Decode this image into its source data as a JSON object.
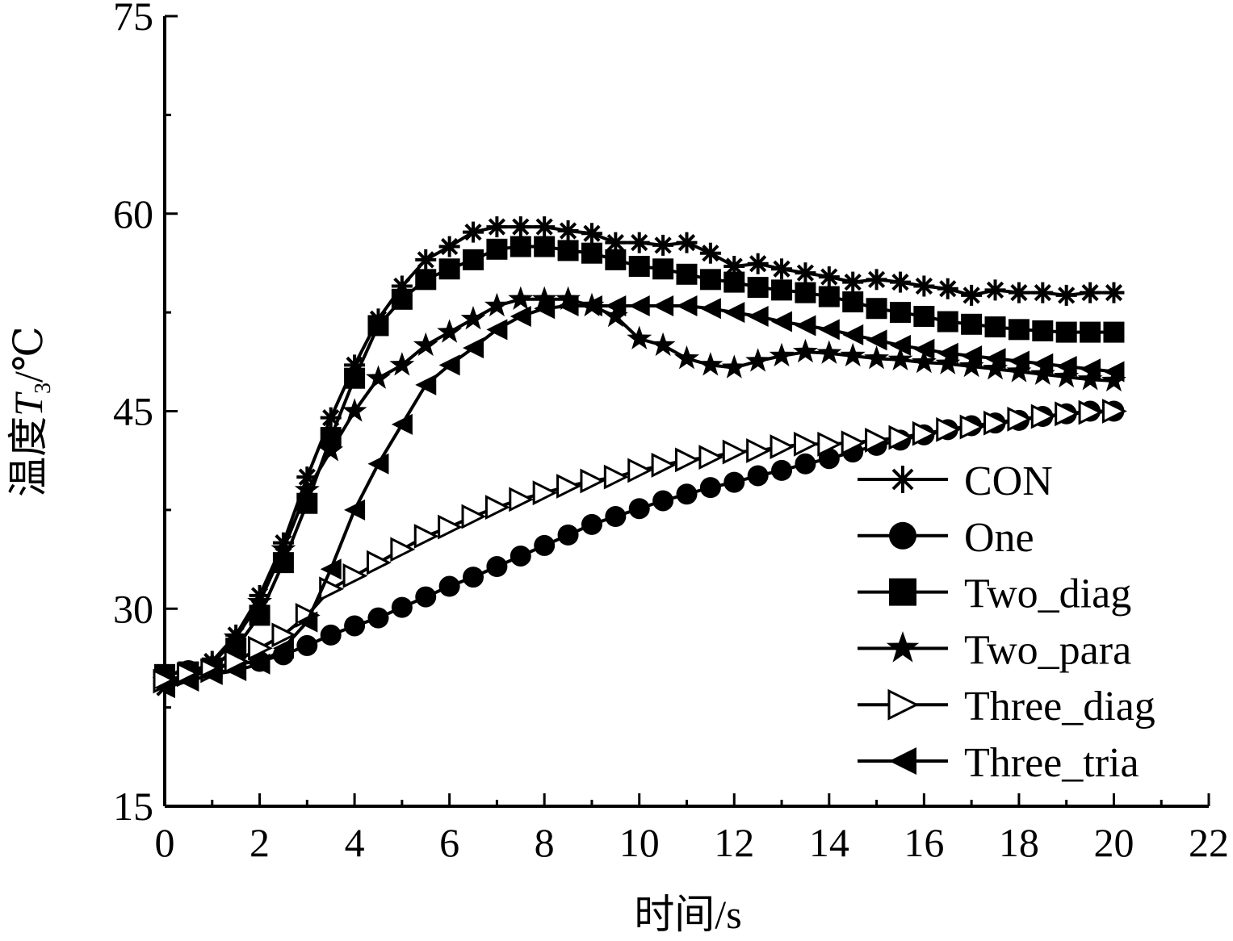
{
  "chart_data": {
    "type": "line",
    "xlabel": "时间/s",
    "ylabel": {
      "prefix": "温度",
      "symbol": "T",
      "subscript": "3",
      "unit": "/℃"
    },
    "xlim": [
      0,
      22
    ],
    "ylim": [
      15,
      75
    ],
    "x_ticks": [
      "0",
      "2",
      "4",
      "6",
      "8",
      "10",
      "12",
      "14",
      "16",
      "18",
      "20",
      "22"
    ],
    "y_ticks": [
      "15",
      "30",
      "45",
      "60",
      "75"
    ],
    "grid": false,
    "legend_position": "lower-right",
    "x": [
      0,
      0.5,
      1,
      1.5,
      2,
      2.5,
      3,
      3.5,
      4,
      4.5,
      5,
      5.5,
      6,
      6.5,
      7,
      7.5,
      8,
      8.5,
      9,
      9.5,
      10,
      10.5,
      11,
      11.5,
      12,
      12.5,
      13,
      13.5,
      14,
      14.5,
      15,
      15.5,
      16,
      16.5,
      17,
      17.5,
      18,
      18.5,
      19,
      19.5,
      20
    ],
    "series": [
      {
        "name": "CON",
        "marker": "asterisk",
        "values": [
          24.0,
          25.0,
          26.0,
          28.0,
          31.0,
          35.0,
          40.0,
          44.5,
          48.5,
          52.0,
          54.5,
          56.5,
          57.5,
          58.6,
          59.0,
          59.0,
          59.0,
          58.7,
          58.5,
          57.8,
          57.8,
          57.6,
          57.8,
          57.0,
          56.0,
          56.2,
          55.8,
          55.5,
          55.2,
          54.8,
          55.0,
          54.8,
          54.5,
          54.3,
          53.8,
          54.2,
          54.0,
          54.0,
          53.8,
          54.0,
          54.0
        ]
      },
      {
        "name": "One",
        "marker": "circle",
        "values": [
          25.0,
          25.3,
          25.6,
          25.8,
          26.0,
          26.5,
          27.2,
          28.0,
          28.7,
          29.3,
          30.1,
          30.9,
          31.7,
          32.4,
          33.2,
          34.0,
          34.8,
          35.6,
          36.4,
          37.0,
          37.6,
          38.2,
          38.7,
          39.2,
          39.6,
          40.1,
          40.5,
          41.0,
          41.4,
          41.9,
          42.4,
          42.8,
          43.2,
          43.6,
          43.9,
          44.1,
          44.3,
          44.6,
          44.8,
          45.0,
          45.0
        ]
      },
      {
        "name": "Two_diag",
        "marker": "square",
        "values": [
          25.0,
          25.2,
          25.5,
          27.0,
          29.5,
          33.5,
          38.0,
          43.0,
          47.5,
          51.5,
          53.5,
          55.0,
          55.8,
          56.5,
          57.3,
          57.5,
          57.5,
          57.2,
          57.0,
          56.5,
          56.0,
          55.8,
          55.4,
          55.0,
          54.8,
          54.4,
          54.2,
          54.0,
          53.7,
          53.3,
          52.8,
          52.5,
          52.2,
          51.8,
          51.6,
          51.4,
          51.2,
          51.1,
          51.0,
          51.0,
          51.0
        ]
      },
      {
        "name": "Two_para",
        "marker": "star",
        "values": [
          24.5,
          25.0,
          25.8,
          27.8,
          30.5,
          34.5,
          39.0,
          42.0,
          45.0,
          47.5,
          48.5,
          50.0,
          51.0,
          52.0,
          53.0,
          53.5,
          53.5,
          53.5,
          53.0,
          52.2,
          50.5,
          50.0,
          49.0,
          48.5,
          48.3,
          48.8,
          49.2,
          49.5,
          49.4,
          49.2,
          49.0,
          48.9,
          48.7,
          48.6,
          48.4,
          48.2,
          48.0,
          47.8,
          47.6,
          47.4,
          47.3
        ]
      },
      {
        "name": "Three_diag",
        "marker": "triangle-right",
        "values": [
          24.5,
          25.0,
          25.3,
          26.0,
          27.0,
          28.0,
          29.5,
          31.5,
          32.5,
          33.5,
          34.5,
          35.5,
          36.2,
          37.0,
          37.7,
          38.3,
          38.8,
          39.3,
          39.7,
          40.0,
          40.5,
          40.9,
          41.3,
          41.5,
          41.9,
          42.0,
          42.3,
          42.5,
          42.5,
          42.6,
          42.8,
          43.0,
          43.3,
          43.6,
          43.8,
          44.1,
          44.4,
          44.6,
          44.8,
          44.9,
          45.0
        ]
      },
      {
        "name": "Three_tria",
        "marker": "triangle-left",
        "values": [
          24.0,
          24.5,
          25.0,
          25.3,
          25.8,
          27.0,
          29.0,
          33.0,
          37.5,
          41.0,
          44.0,
          47.0,
          48.5,
          49.8,
          51.2,
          52.2,
          52.8,
          53.0,
          53.0,
          53.0,
          53.0,
          53.0,
          53.0,
          52.8,
          52.5,
          52.2,
          51.8,
          51.5,
          51.2,
          50.8,
          50.4,
          50.0,
          49.7,
          49.4,
          49.2,
          49.0,
          48.8,
          48.6,
          48.4,
          48.2,
          48.0
        ]
      }
    ]
  }
}
